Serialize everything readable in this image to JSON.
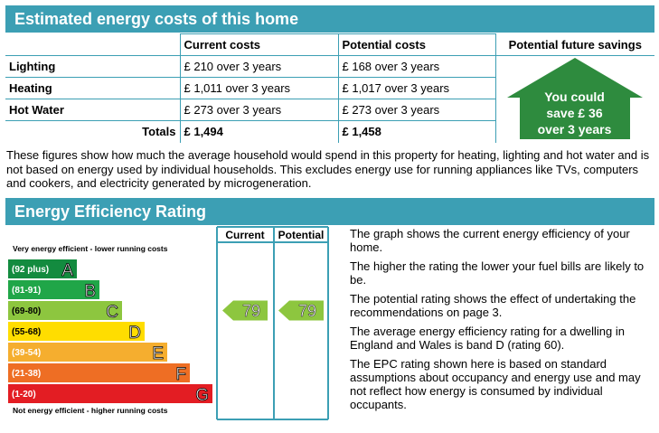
{
  "costs_section": {
    "title": "Estimated energy costs of this home",
    "headers": [
      "Current costs",
      "Potential costs",
      "Potential future savings"
    ],
    "rows": [
      {
        "label": "Lighting",
        "current": "£ 210 over 3 years",
        "potential": "£ 168 over 3 years"
      },
      {
        "label": "Heating",
        "current": "£ 1,011 over 3 years",
        "potential": "£ 1,017 over 3 years"
      },
      {
        "label": "Hot Water",
        "current": "£ 273 over 3 years",
        "potential": "£ 273 over 3 years"
      }
    ],
    "totals": {
      "label": "Totals",
      "current": "£ 1,494",
      "potential": "£ 1,458"
    },
    "savings": {
      "line1": "You could",
      "line2": "save £ 36",
      "line3": "over 3 years",
      "color": "#2e8b3e"
    },
    "intro": "These figures show how much the average household would spend in this property for heating, lighting and hot water and is not based on energy used by individual households. This excludes energy use for running appliances like TVs, computers and cookers, and electricity generated by microgeneration."
  },
  "rating_section": {
    "title": "Energy Efficiency Rating",
    "col_current": "Current",
    "col_potential": "Potential",
    "top_note": "Very energy efficient - lower running costs",
    "bottom_note": "Not energy efficient - higher running costs",
    "bands": [
      {
        "range": "(92 plus)",
        "letter": "A",
        "color": "#138b3f"
      },
      {
        "range": "(81-91)",
        "letter": "B",
        "color": "#20a648"
      },
      {
        "range": "(69-80)",
        "letter": "C",
        "color": "#8dc63f"
      },
      {
        "range": "(55-68)",
        "letter": "D",
        "color": "#ffdd00"
      },
      {
        "range": "(39-54)",
        "letter": "E",
        "color": "#f5ae2f"
      },
      {
        "range": "(21-38)",
        "letter": "F",
        "color": "#ee6e24"
      },
      {
        "range": "(1-20)",
        "letter": "G",
        "color": "#e31d23"
      }
    ],
    "current_rating": "79",
    "potential_rating": "79",
    "rating_color": "#8dc63f",
    "descriptions": [
      "The graph shows the current energy efficiency of your home.",
      "The higher the rating the lower your fuel bills are likely to be.",
      "The potential rating shows the effect of undertaking the recommendations on page 3.",
      "The average energy efficiency rating for a dwelling in England and Wales is band D (rating 60).",
      "The EPC rating shown here is based on standard assumptions about occupancy and energy use and may not reflect how energy is consumed by individual occupants."
    ]
  }
}
